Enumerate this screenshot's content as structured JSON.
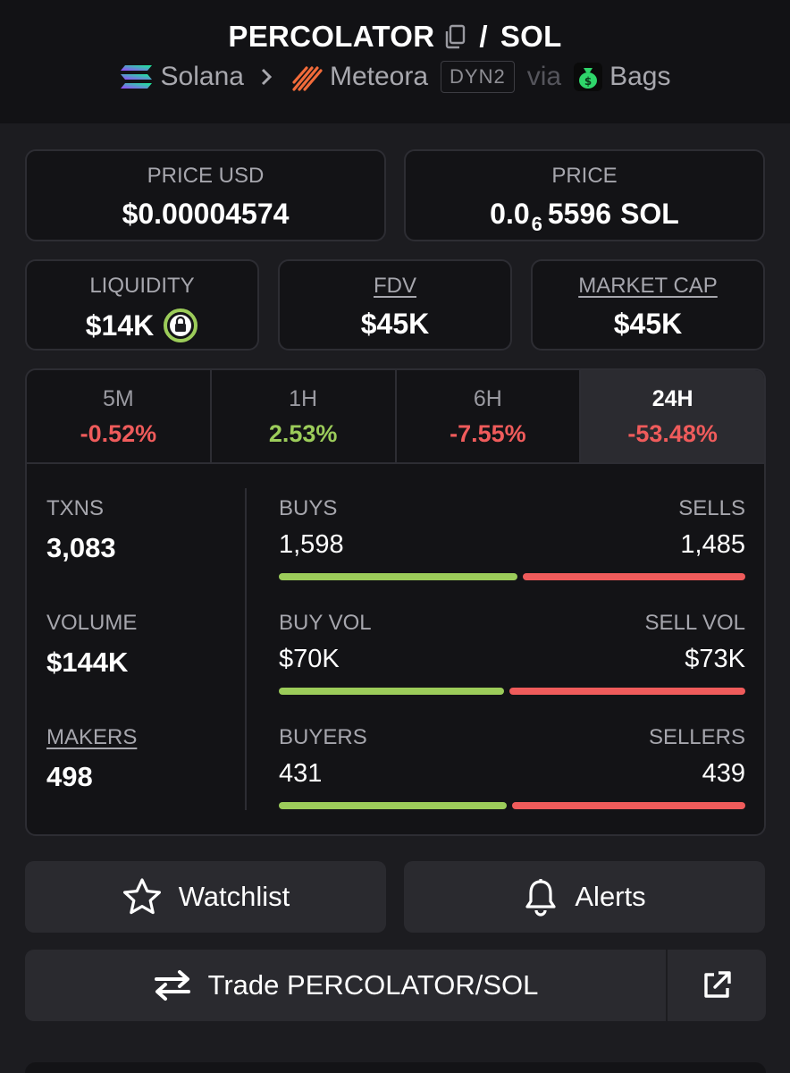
{
  "header": {
    "token": "PERCOLATOR",
    "quote": "SOL",
    "slash": "/",
    "chain": "Solana",
    "dex": "Meteora",
    "pool_badge": "DYN2",
    "via": "via",
    "launchpad": "Bags"
  },
  "price_usd": {
    "label": "PRICE USD",
    "value": "$0.00004574"
  },
  "price_native": {
    "label": "PRICE",
    "prefix": "0.0",
    "zeros": "6",
    "digits": "5596",
    "unit": "SOL"
  },
  "liquidity": {
    "label": "LIQUIDITY",
    "value": "$14K"
  },
  "fdv": {
    "label": "FDV",
    "value": "$45K"
  },
  "market_cap": {
    "label": "MARKET CAP",
    "value": "$45K"
  },
  "timeframes": [
    {
      "label": "5M",
      "change": "-0.52%"
    },
    {
      "label": "1H",
      "change": "2.53%"
    },
    {
      "label": "6H",
      "change": "-7.55%"
    },
    {
      "label": "24H",
      "change": "-53.48%"
    }
  ],
  "stats": {
    "txns": {
      "label": "TXNS",
      "value": "3,083"
    },
    "volume": {
      "label": "VOLUME",
      "value": "$144K"
    },
    "makers": {
      "label": "MAKERS",
      "value": "498"
    },
    "buys_sells": {
      "left_label": "BUYS",
      "right_label": "SELLS",
      "left_value": "1,598",
      "right_value": "1,485",
      "buy_fraction": 0.518
    },
    "vol_split": {
      "left_label": "BUY VOL",
      "right_label": "SELL VOL",
      "left_value": "$70K",
      "right_value": "$73K",
      "buy_fraction": 0.489
    },
    "buyers_sellers": {
      "left_label": "BUYERS",
      "right_label": "SELLERS",
      "left_value": "431",
      "right_value": "439",
      "buy_fraction": 0.495
    }
  },
  "actions": {
    "watchlist": "Watchlist",
    "alerts": "Alerts",
    "trade": "Trade PERCOLATOR/SOL"
  },
  "colors": {
    "positive": "#9ccc5a",
    "negative": "#ef5b5b",
    "background": "#1c1c20"
  }
}
